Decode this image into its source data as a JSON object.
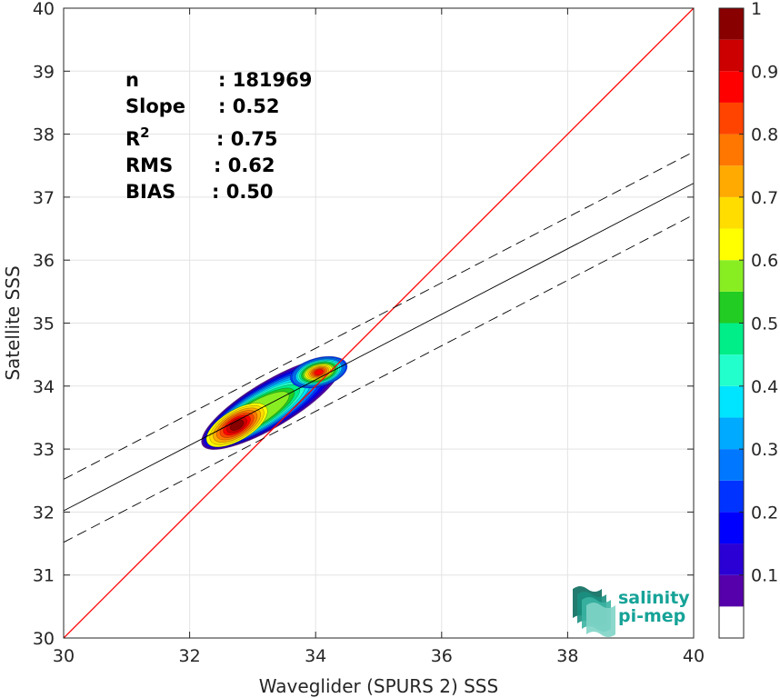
{
  "chart_data": {
    "type": "heatmap",
    "xlabel": "Waveglider (SPURS 2) SSS",
    "ylabel": "Satellite SSS",
    "xlim": [
      30,
      40
    ],
    "ylim": [
      30,
      40
    ],
    "xticks": [
      "30",
      "32",
      "34",
      "36",
      "38",
      "40"
    ],
    "yticks": [
      "30",
      "31",
      "32",
      "33",
      "34",
      "35",
      "36",
      "37",
      "38",
      "39",
      "40"
    ],
    "grid": true,
    "stats": [
      {
        "label": "n",
        "sep": ": ",
        "value": "181969"
      },
      {
        "label": "Slope",
        "sep": ": ",
        "value": "0.52"
      },
      {
        "label": "R",
        "sup": "2",
        "sep": ": ",
        "value": "0.75"
      },
      {
        "label": "RMS",
        "sep": ": ",
        "value": "0.62"
      },
      {
        "label": "BIAS",
        "sep": ": ",
        "value": "0.50"
      }
    ],
    "identity_line": {
      "x": [
        30,
        40
      ],
      "y": [
        30,
        40
      ],
      "color": "#ff0000"
    },
    "regression_line": {
      "x": [
        30,
        40
      ],
      "y": [
        32.02,
        37.22
      ],
      "color": "#000000"
    },
    "regression_upper": {
      "x": [
        30,
        40
      ],
      "y": [
        32.52,
        37.72
      ],
      "style": "dashed"
    },
    "regression_lower": {
      "x": [
        30,
        40
      ],
      "y": [
        31.52,
        36.72
      ],
      "style": "dashed"
    },
    "density_peaks": [
      {
        "x": 32.75,
        "y": 33.38,
        "value": 1.0
      },
      {
        "x": 34.05,
        "y": 34.22,
        "value": 0.8
      }
    ],
    "colorbar": {
      "range": [
        0,
        1
      ],
      "ticks": [
        "0.1",
        "0.2",
        "0.3",
        "0.4",
        "0.5",
        "0.6",
        "0.7",
        "0.8",
        "0.9",
        "1"
      ],
      "levels": [
        0,
        0.05,
        0.1,
        0.15,
        0.2,
        0.25,
        0.3,
        0.35,
        0.4,
        0.45,
        0.5,
        0.55,
        0.6,
        0.65,
        0.7,
        0.75,
        0.8,
        0.85,
        0.9,
        0.95,
        1.0
      ],
      "colors": [
        "#ffffff",
        "#5500aa",
        "#2a00d4",
        "#0000ff",
        "#0033ff",
        "#0077ff",
        "#00aaff",
        "#00e5ff",
        "#22ffcc",
        "#00ee88",
        "#22cc22",
        "#88ee22",
        "#ffff00",
        "#ffdd00",
        "#ffaa00",
        "#ff7700",
        "#ff4400",
        "#ff0000",
        "#cc0000",
        "#880000"
      ]
    }
  },
  "logo": {
    "line1": "salinity",
    "line2": "pi-mep"
  }
}
